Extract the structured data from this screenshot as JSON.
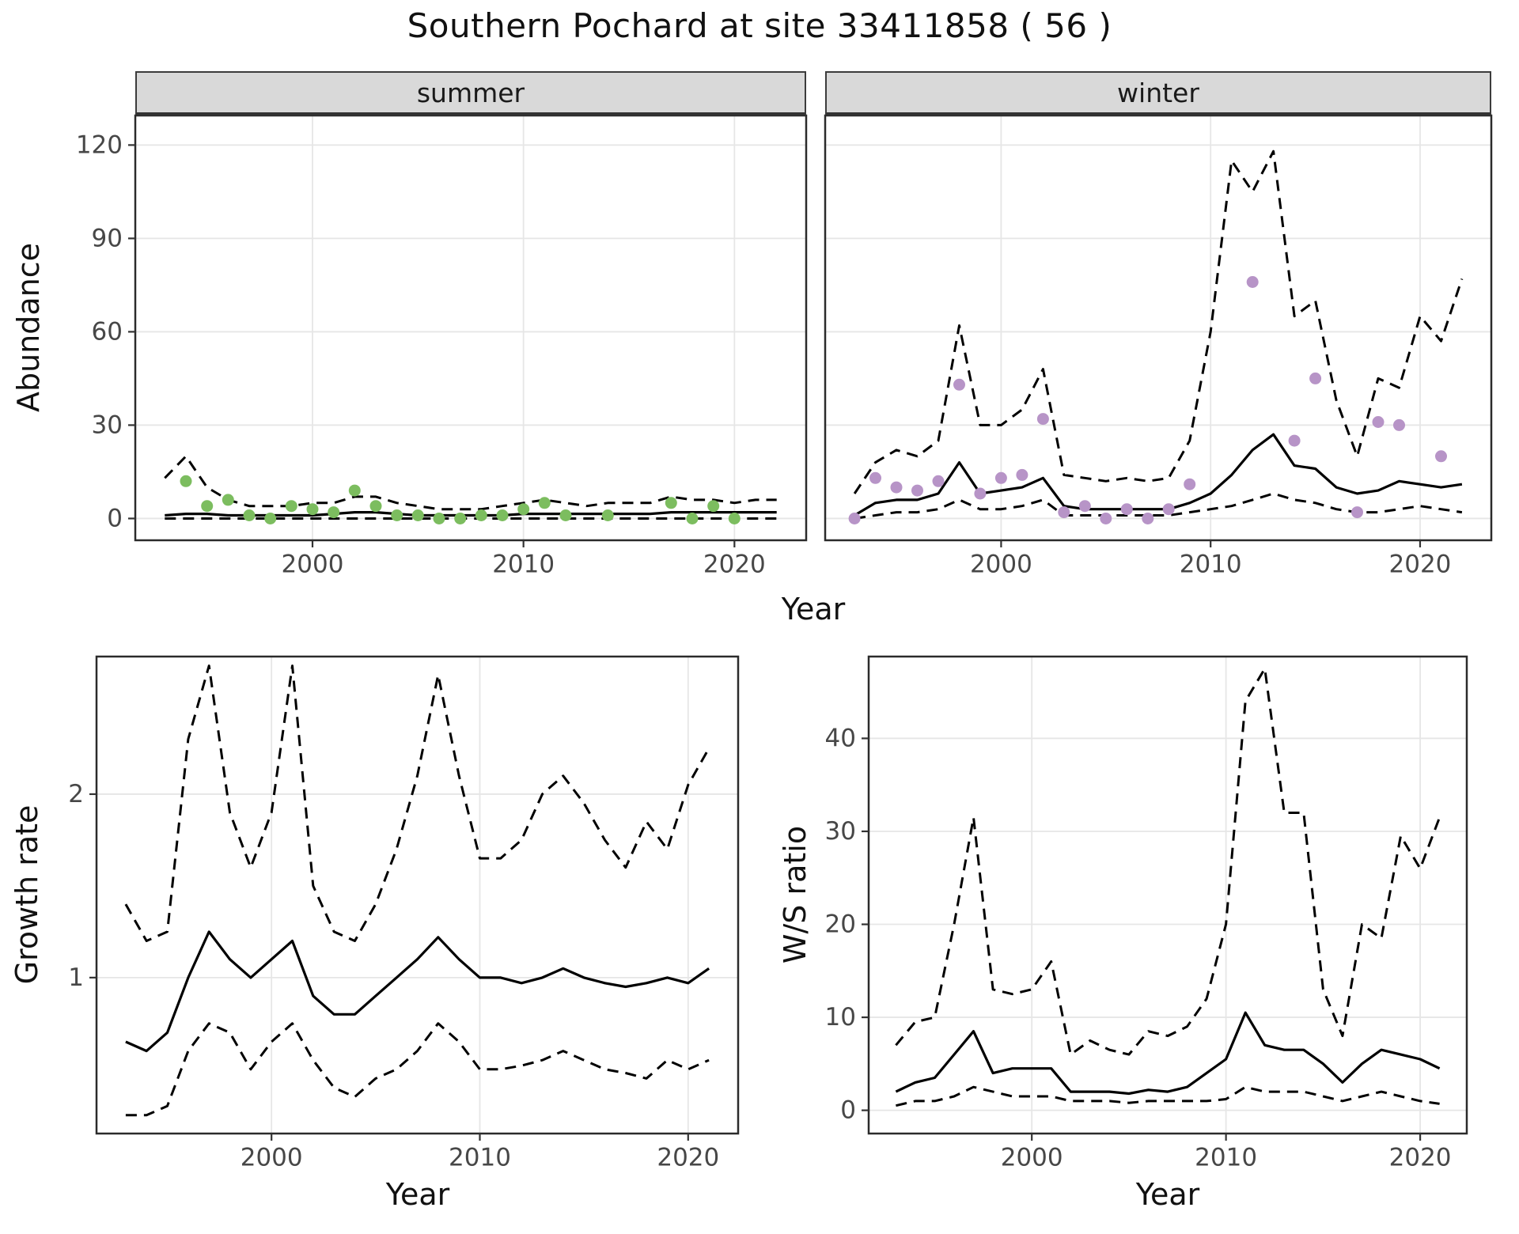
{
  "title": "Southern Pochard at site 33411858 ( 56 )",
  "facets": {
    "summer": "summer",
    "winter": "winter"
  },
  "axes": {
    "abundance_label": "Abundance",
    "year_label": "Year",
    "growth_label": "Growth rate",
    "ws_label": "W/S ratio"
  },
  "colors": {
    "summer_point": "#7cbd5f",
    "winter_point": "#b794c7",
    "line": "#000000",
    "grid": "#e6e6e6",
    "strip_bg": "#d9d9d9",
    "panel_border": "#2b2b2b",
    "tick_text": "#474747"
  },
  "chart_data": [
    {
      "type": "line",
      "name": "abundance-summer",
      "facet": "summer",
      "xlabel": "Year",
      "ylabel": "Abundance",
      "xlim": [
        1991.6,
        2023.4
      ],
      "ylim": [
        -7,
        129.5
      ],
      "xticks": [
        2000,
        2010,
        2020
      ],
      "yticks": [
        0,
        30,
        60,
        90,
        120
      ],
      "years": [
        1993,
        1994,
        1995,
        1996,
        1997,
        1998,
        1999,
        2000,
        2001,
        2002,
        2003,
        2004,
        2005,
        2006,
        2007,
        2008,
        2009,
        2010,
        2011,
        2012,
        2013,
        2014,
        2015,
        2016,
        2017,
        2018,
        2019,
        2020,
        2021,
        2022
      ],
      "fit": [
        1,
        1.5,
        1.5,
        1,
        1,
        1,
        1,
        1,
        1.5,
        2,
        2,
        1.5,
        1,
        1,
        1,
        1,
        1,
        1.5,
        1.5,
        1.5,
        1.5,
        1.5,
        1.5,
        1.5,
        2,
        2,
        2,
        2,
        2,
        2
      ],
      "upper": [
        13,
        20,
        10,
        6,
        4,
        4,
        4,
        5,
        5,
        7,
        7,
        5,
        4,
        3,
        3,
        3,
        4,
        5,
        6,
        5,
        4,
        5,
        5,
        5,
        7,
        6,
        6,
        5,
        6,
        6
      ],
      "lower": [
        0,
        0,
        0,
        0,
        0,
        0,
        0,
        0,
        0,
        0,
        0,
        0,
        0,
        0,
        0,
        0,
        0,
        0,
        0,
        0,
        0,
        0,
        0,
        0,
        0,
        0,
        0,
        0,
        0,
        0
      ],
      "points": {
        "years": [
          1994,
          1995,
          1996,
          1997,
          1998,
          1999,
          2000,
          2001,
          2002,
          2003,
          2004,
          2005,
          2006,
          2007,
          2008,
          2009,
          2010,
          2011,
          2012,
          2014,
          2017,
          2018,
          2019,
          2020
        ],
        "values": [
          12,
          4,
          6,
          1,
          0,
          4,
          3,
          2,
          9,
          4,
          1,
          1,
          0,
          0,
          1,
          1,
          3,
          5,
          1,
          1,
          5,
          0,
          4,
          0
        ]
      }
    },
    {
      "type": "line",
      "name": "abundance-winter",
      "facet": "winter",
      "xlabel": "Year",
      "ylabel": "Abundance",
      "xlim": [
        1991.6,
        2023.4
      ],
      "ylim": [
        -7,
        129.5
      ],
      "xticks": [
        2000,
        2010,
        2020
      ],
      "yticks": [
        0,
        30,
        60,
        90,
        120
      ],
      "years": [
        1993,
        1994,
        1995,
        1996,
        1997,
        1998,
        1999,
        2000,
        2001,
        2002,
        2003,
        2004,
        2005,
        2006,
        2007,
        2008,
        2009,
        2010,
        2011,
        2012,
        2013,
        2014,
        2015,
        2016,
        2017,
        2018,
        2019,
        2020,
        2021,
        2022
      ],
      "fit": [
        1,
        5,
        6,
        6,
        8,
        18,
        8,
        9,
        10,
        13,
        4,
        3,
        3,
        3,
        3,
        3,
        5,
        8,
        14,
        22,
        27,
        17,
        16,
        10,
        8,
        9,
        12,
        11,
        10,
        11
      ],
      "upper": [
        8,
        18,
        22,
        20,
        25,
        62,
        30,
        30,
        35,
        48,
        14,
        13,
        12,
        13,
        12,
        13,
        25,
        60,
        115,
        105,
        118,
        65,
        70,
        38,
        20,
        45,
        42,
        65,
        57,
        77
      ],
      "lower": [
        0,
        1,
        2,
        2,
        3,
        6,
        3,
        3,
        4,
        6,
        1,
        1,
        1,
        1,
        1,
        1,
        2,
        3,
        4,
        6,
        8,
        6,
        5,
        3,
        2,
        2,
        3,
        4,
        3,
        2
      ],
      "points": {
        "years": [
          1993,
          1994,
          1995,
          1996,
          1997,
          1998,
          1999,
          2000,
          2001,
          2002,
          2003,
          2004,
          2005,
          2006,
          2007,
          2008,
          2009,
          2012,
          2014,
          2015,
          2017,
          2018,
          2019,
          2021
        ],
        "values": [
          0,
          13,
          10,
          9,
          12,
          43,
          8,
          13,
          14,
          32,
          2,
          4,
          0,
          3,
          0,
          3,
          11,
          76,
          25,
          45,
          2,
          31,
          30,
          20
        ]
      }
    },
    {
      "type": "line",
      "name": "growth-rate",
      "xlabel": "Year",
      "ylabel": "Growth rate",
      "xlim": [
        1991.6,
        2022.4
      ],
      "ylim": [
        0.15,
        2.75
      ],
      "xticks": [
        2000,
        2010,
        2020
      ],
      "yticks": [
        1,
        2
      ],
      "years": [
        1993,
        1994,
        1995,
        1996,
        1997,
        1998,
        1999,
        2000,
        2001,
        2002,
        2003,
        2004,
        2005,
        2006,
        2007,
        2008,
        2009,
        2010,
        2011,
        2012,
        2013,
        2014,
        2015,
        2016,
        2017,
        2018,
        2019,
        2020,
        2021
      ],
      "fit": [
        0.65,
        0.6,
        0.7,
        1.0,
        1.25,
        1.1,
        1.0,
        1.1,
        1.2,
        0.9,
        0.8,
        0.8,
        0.9,
        1.0,
        1.1,
        1.22,
        1.1,
        1.0,
        1.0,
        0.97,
        1.0,
        1.05,
        1.0,
        0.97,
        0.95,
        0.97,
        1.0,
        0.97,
        1.05
      ],
      "upper": [
        1.4,
        1.2,
        1.25,
        2.3,
        2.7,
        1.9,
        1.6,
        1.9,
        2.7,
        1.5,
        1.25,
        1.2,
        1.4,
        1.7,
        2.1,
        2.65,
        2.1,
        1.65,
        1.65,
        1.75,
        2.0,
        2.1,
        1.95,
        1.75,
        1.6,
        1.85,
        1.7,
        2.05,
        2.25
      ],
      "lower": [
        0.25,
        0.25,
        0.3,
        0.6,
        0.75,
        0.7,
        0.5,
        0.65,
        0.75,
        0.55,
        0.4,
        0.35,
        0.45,
        0.5,
        0.6,
        0.75,
        0.65,
        0.5,
        0.5,
        0.52,
        0.55,
        0.6,
        0.55,
        0.5,
        0.48,
        0.45,
        0.55,
        0.5,
        0.55
      ]
    },
    {
      "type": "line",
      "name": "ws-ratio",
      "xlabel": "Year",
      "ylabel": "W/S ratio",
      "xlim": [
        1991.6,
        2022.4
      ],
      "ylim": [
        -2.5,
        48.8
      ],
      "xticks": [
        2000,
        2010,
        2020
      ],
      "yticks": [
        0,
        10,
        20,
        30,
        40
      ],
      "years": [
        1993,
        1994,
        1995,
        1996,
        1997,
        1998,
        1999,
        2000,
        2001,
        2002,
        2003,
        2004,
        2005,
        2006,
        2007,
        2008,
        2009,
        2010,
        2011,
        2012,
        2013,
        2014,
        2015,
        2016,
        2017,
        2018,
        2019,
        2020,
        2021
      ],
      "fit": [
        2,
        3,
        3.5,
        6,
        8.5,
        4,
        4.5,
        4.5,
        4.5,
        2,
        2,
        2,
        1.8,
        2.2,
        2,
        2.5,
        4,
        5.5,
        10.5,
        7,
        6.5,
        6.5,
        5,
        3,
        5,
        6.5,
        6,
        5.5,
        4.5
      ],
      "upper": [
        7,
        9.5,
        10,
        20,
        31.5,
        13,
        12.5,
        13,
        16,
        6,
        7.5,
        6.5,
        6,
        8.5,
        8,
        9,
        12,
        20,
        44,
        47.5,
        32,
        32,
        13,
        8,
        20,
        18.5,
        29.5,
        26,
        31.5
      ],
      "lower": [
        0.5,
        1,
        1,
        1.5,
        2.5,
        2,
        1.5,
        1.5,
        1.5,
        1,
        1,
        1,
        0.8,
        1,
        1,
        1,
        1,
        1.2,
        2.5,
        2,
        2,
        2,
        1.5,
        1,
        1.5,
        2,
        1.5,
        1,
        0.7
      ]
    }
  ]
}
